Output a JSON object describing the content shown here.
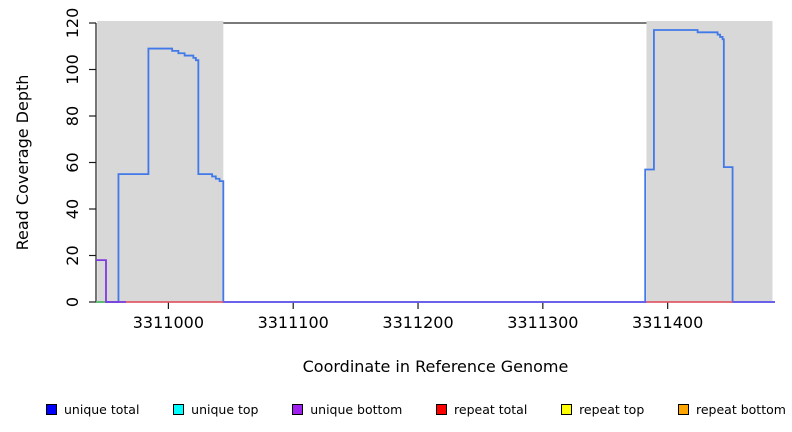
{
  "chart_data": {
    "type": "line",
    "title": "",
    "xlabel": "Coordinate in Reference Genome",
    "ylabel": "Read Coverage Depth",
    "xlim": [
      3310942,
      3311486
    ],
    "ylim": [
      0,
      120
    ],
    "x_ticks": [
      3311000,
      3311100,
      3311200,
      3311300,
      3311400
    ],
    "y_ticks": [
      0,
      20,
      40,
      60,
      80,
      100,
      120
    ],
    "grid": false,
    "legend_position": "bottom",
    "repeat_regions": [
      {
        "from": 3310943,
        "to": 3311044
      },
      {
        "from": 3311383,
        "to": 3311484
      }
    ],
    "boundary_line": {
      "y": 120,
      "from": 3311044,
      "to": 3311383,
      "color": "#4f4f4f"
    },
    "series": [
      {
        "name": "unique total",
        "color": "#4179e8",
        "width": 1.8,
        "kind": "path",
        "points": [
          [
            3310942,
            0
          ],
          [
            3310960,
            0
          ],
          [
            3310960,
            55
          ],
          [
            3310984,
            55
          ],
          [
            3310984,
            109
          ],
          [
            3311003,
            109
          ],
          [
            3311003,
            108
          ],
          [
            3311008,
            108
          ],
          [
            3311008,
            107
          ],
          [
            3311013,
            107
          ],
          [
            3311013,
            106
          ],
          [
            3311020,
            106
          ],
          [
            3311020,
            105
          ],
          [
            3311022,
            105
          ],
          [
            3311022,
            104
          ],
          [
            3311024,
            104
          ],
          [
            3311024,
            55
          ],
          [
            3311035,
            55
          ],
          [
            3311035,
            54
          ],
          [
            3311038,
            54
          ],
          [
            3311038,
            53
          ],
          [
            3311041,
            53
          ],
          [
            3311041,
            52
          ],
          [
            3311044,
            52
          ],
          [
            3311044,
            0
          ],
          [
            3311382,
            0
          ],
          [
            3311382,
            57
          ],
          [
            3311389,
            57
          ],
          [
            3311389,
            117
          ],
          [
            3311424,
            117
          ],
          [
            3311424,
            116
          ],
          [
            3311440,
            116
          ],
          [
            3311440,
            115
          ],
          [
            3311442,
            115
          ],
          [
            3311442,
            114
          ],
          [
            3311444,
            114
          ],
          [
            3311444,
            113
          ],
          [
            3311445,
            113
          ],
          [
            3311445,
            58
          ],
          [
            3311452,
            58
          ],
          [
            3311452,
            0
          ],
          [
            3311486,
            0
          ]
        ]
      },
      {
        "name": "unique top zero segment",
        "color": "#5ecc5e",
        "width": 1.6,
        "kind": "baseline",
        "segments": [
          [
            3310942,
            3310950
          ]
        ]
      },
      {
        "name": "repeat total zero coverage",
        "color": "#ef5666",
        "width": 1.6,
        "kind": "baseline",
        "segments": [
          [
            3310966,
            3311044
          ],
          [
            3311383,
            3311452
          ]
        ]
      },
      {
        "name": "unique zero coverage",
        "color": "#6e55f0",
        "width": 1.6,
        "kind": "baseline",
        "segments": [
          [
            3311044,
            3311383
          ],
          [
            3311452,
            3311486
          ]
        ]
      },
      {
        "name": "unique bottom",
        "color": "#7d3bdf",
        "width": 1.8,
        "kind": "path",
        "points": [
          [
            3310942,
            18
          ],
          [
            3310950,
            18
          ],
          [
            3310950,
            0
          ],
          [
            3310966,
            0
          ]
        ]
      }
    ],
    "legend": [
      {
        "label": "unique total",
        "color": "#0000ff"
      },
      {
        "label": "unique top",
        "color": "#00ffff"
      },
      {
        "label": "unique bottom",
        "color": "#a020f0"
      },
      {
        "label": "repeat total",
        "color": "#ff0000"
      },
      {
        "label": "repeat top",
        "color": "#ffff00"
      },
      {
        "label": "repeat bottom",
        "color": "#ffa500"
      }
    ],
    "colors": {
      "repeat_region_fill": "#d8d8d8",
      "axis": "#1a1a1a",
      "plot_background": "#ffffff"
    }
  }
}
